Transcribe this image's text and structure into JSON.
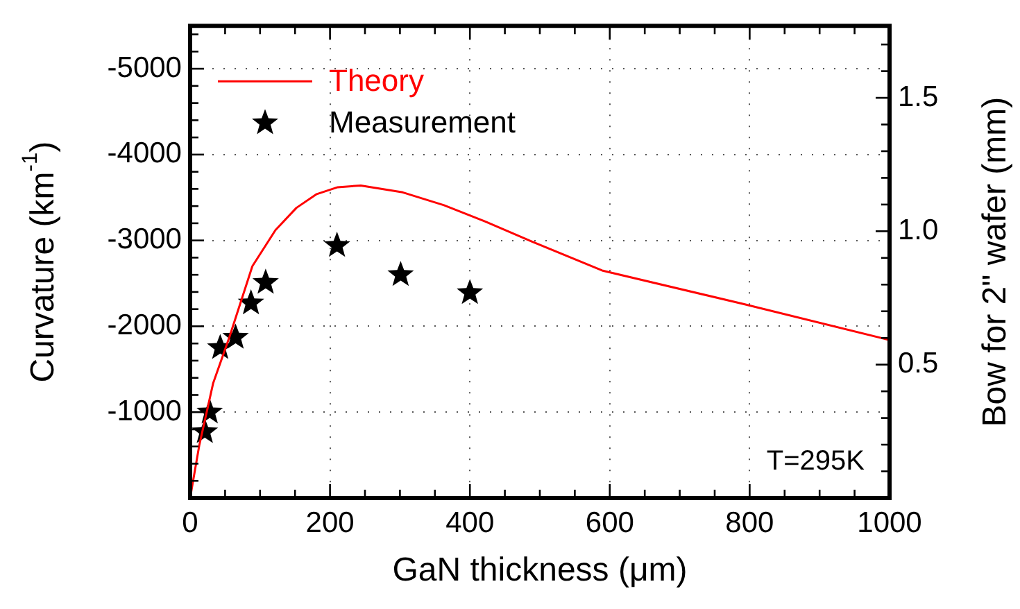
{
  "chart_data": {
    "type": "line",
    "xlabel": "GaN thickness (μm)",
    "ylabel": "Curvature (km$^{-1}$)",
    "y2label": "Bow for 2\" wafer (mm)",
    "xlim": [
      0,
      1000
    ],
    "xticks": [
      0,
      {
        "value": 50,
        "label": null
      },
      {
        "value": 100,
        "label": null
      },
      {
        "value": 150,
        "label": null
      },
      200,
      {
        "value": 250,
        "label": null
      },
      {
        "value": 300,
        "label": null
      },
      {
        "value": 350,
        "label": null
      },
      400,
      {
        "value": 450,
        "label": null
      },
      {
        "value": 500,
        "label": null
      },
      {
        "value": 550,
        "label": null
      },
      600,
      {
        "value": 650,
        "label": null
      },
      {
        "value": 700,
        "label": null
      },
      {
        "value": 750,
        "label": null
      },
      800,
      {
        "value": 850,
        "label": null
      },
      {
        "value": 900,
        "label": null
      },
      {
        "value": 950,
        "label": null
      },
      1000
    ],
    "ylim": [
      0,
      -5500
    ],
    "yticks": [
      {
        "value": -200,
        "label": null
      },
      {
        "value": -400,
        "label": null
      },
      {
        "value": -600,
        "label": null
      },
      {
        "value": -800,
        "label": null
      },
      -1000,
      {
        "value": -1200,
        "label": null
      },
      {
        "value": -1400,
        "label": null
      },
      {
        "value": -1600,
        "label": null
      },
      {
        "value": -1800,
        "label": null
      },
      -2000,
      {
        "value": -2200,
        "label": null
      },
      {
        "value": -2400,
        "label": null
      },
      {
        "value": -2600,
        "label": null
      },
      {
        "value": -2800,
        "label": null
      },
      -3000,
      {
        "value": -3200,
        "label": null
      },
      {
        "value": -3400,
        "label": null
      },
      {
        "value": -3600,
        "label": null
      },
      {
        "value": -3800,
        "label": null
      },
      -4000,
      {
        "value": -4200,
        "label": null
      },
      {
        "value": -4400,
        "label": null
      },
      {
        "value": -4600,
        "label": null
      },
      {
        "value": -4800,
        "label": null
      },
      -5000,
      {
        "value": -5200,
        "label": null
      },
      {
        "value": -5400,
        "label": null
      }
    ],
    "y2lim": [
      0,
      1.77
    ],
    "y2ticks": [
      {
        "value": 0.1,
        "label": null
      },
      {
        "value": 0.2,
        "label": null
      },
      {
        "value": 0.3,
        "label": null
      },
      {
        "value": 0.4,
        "label": null
      },
      0.5,
      {
        "value": 0.6,
        "label": null
      },
      {
        "value": 0.7,
        "label": null
      },
      {
        "value": 0.8,
        "label": null
      },
      {
        "value": 0.9,
        "label": null
      },
      {
        "value": 1,
        "label": "1.0"
      },
      {
        "value": 1.1,
        "label": null
      },
      {
        "value": 1.2,
        "label": null
      },
      {
        "value": 1.3,
        "label": null
      },
      {
        "value": 1.4,
        "label": null
      },
      1.5,
      {
        "value": 1.6,
        "label": null
      },
      {
        "value": 1.7,
        "label": null
      }
    ],
    "grid": true,
    "legend": "top left",
    "annotations": [
      "T=295K"
    ],
    "series": [
      {
        "name": "Theory",
        "type": "line",
        "color": "#ff0000",
        "marker": "none",
        "line_style": "solid",
        "x": [
          0,
          13,
          33,
          56,
          89,
          122,
          152,
          181,
          211,
          244,
          304,
          363,
          422,
          482,
          589,
          791,
          1000
        ],
        "values": [
          0,
          -610,
          -1340,
          -1870,
          -2700,
          -3120,
          -3380,
          -3540,
          -3620,
          -3640,
          -3560,
          -3410,
          -3220,
          -3010,
          -2650,
          -2260,
          -1840
        ]
      },
      {
        "name": "Measurement",
        "type": "scatter",
        "color": "#000000",
        "marker": "star",
        "x": [
          21,
          28,
          43,
          65,
          87,
          108,
          210,
          301,
          400
        ],
        "values": [
          -770,
          -1000,
          -1750,
          -1870,
          -2270,
          -2510,
          -2940,
          -2600,
          -2390
        ]
      }
    ]
  }
}
